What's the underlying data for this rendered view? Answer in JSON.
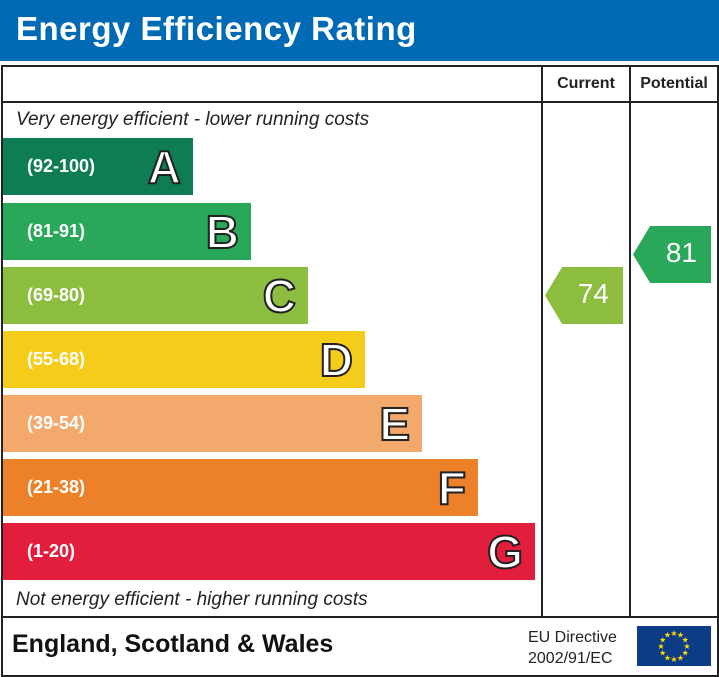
{
  "title": "Energy Efficiency Rating",
  "columns": {
    "current": "Current",
    "potential": "Potential"
  },
  "top_note": "Very energy efficient - lower running costs",
  "bottom_note": "Not energy efficient - higher running costs",
  "footer": {
    "region": "England, Scotland & Wales",
    "directive_line1": "EU Directive",
    "directive_line2": "2002/91/EC",
    "flag_icon": "eu-flag-icon"
  },
  "chart_data": {
    "type": "bar",
    "bands": [
      {
        "letter": "A",
        "range": "(92-100)",
        "min": 92,
        "max": 100,
        "color": "#0f7d54"
      },
      {
        "letter": "B",
        "range": "(81-91)",
        "min": 81,
        "max": 91,
        "color": "#2aa85a"
      },
      {
        "letter": "C",
        "range": "(69-80)",
        "min": 69,
        "max": 80,
        "color": "#8dbd3f"
      },
      {
        "letter": "D",
        "range": "(55-68)",
        "min": 55,
        "max": 68,
        "color": "#f6cc1a"
      },
      {
        "letter": "E",
        "range": "(39-54)",
        "min": 39,
        "max": 54,
        "color": "#f2a96b"
      },
      {
        "letter": "F",
        "range": "(21-38)",
        "min": 21,
        "max": 38,
        "color": "#ec8129"
      },
      {
        "letter": "G",
        "range": "(1-20)",
        "min": 1,
        "max": 20,
        "color": "#e31d3c"
      }
    ],
    "current": {
      "value": 74,
      "label": "74",
      "band": "C"
    },
    "potential": {
      "value": 81,
      "label": "81",
      "band": "B"
    }
  }
}
